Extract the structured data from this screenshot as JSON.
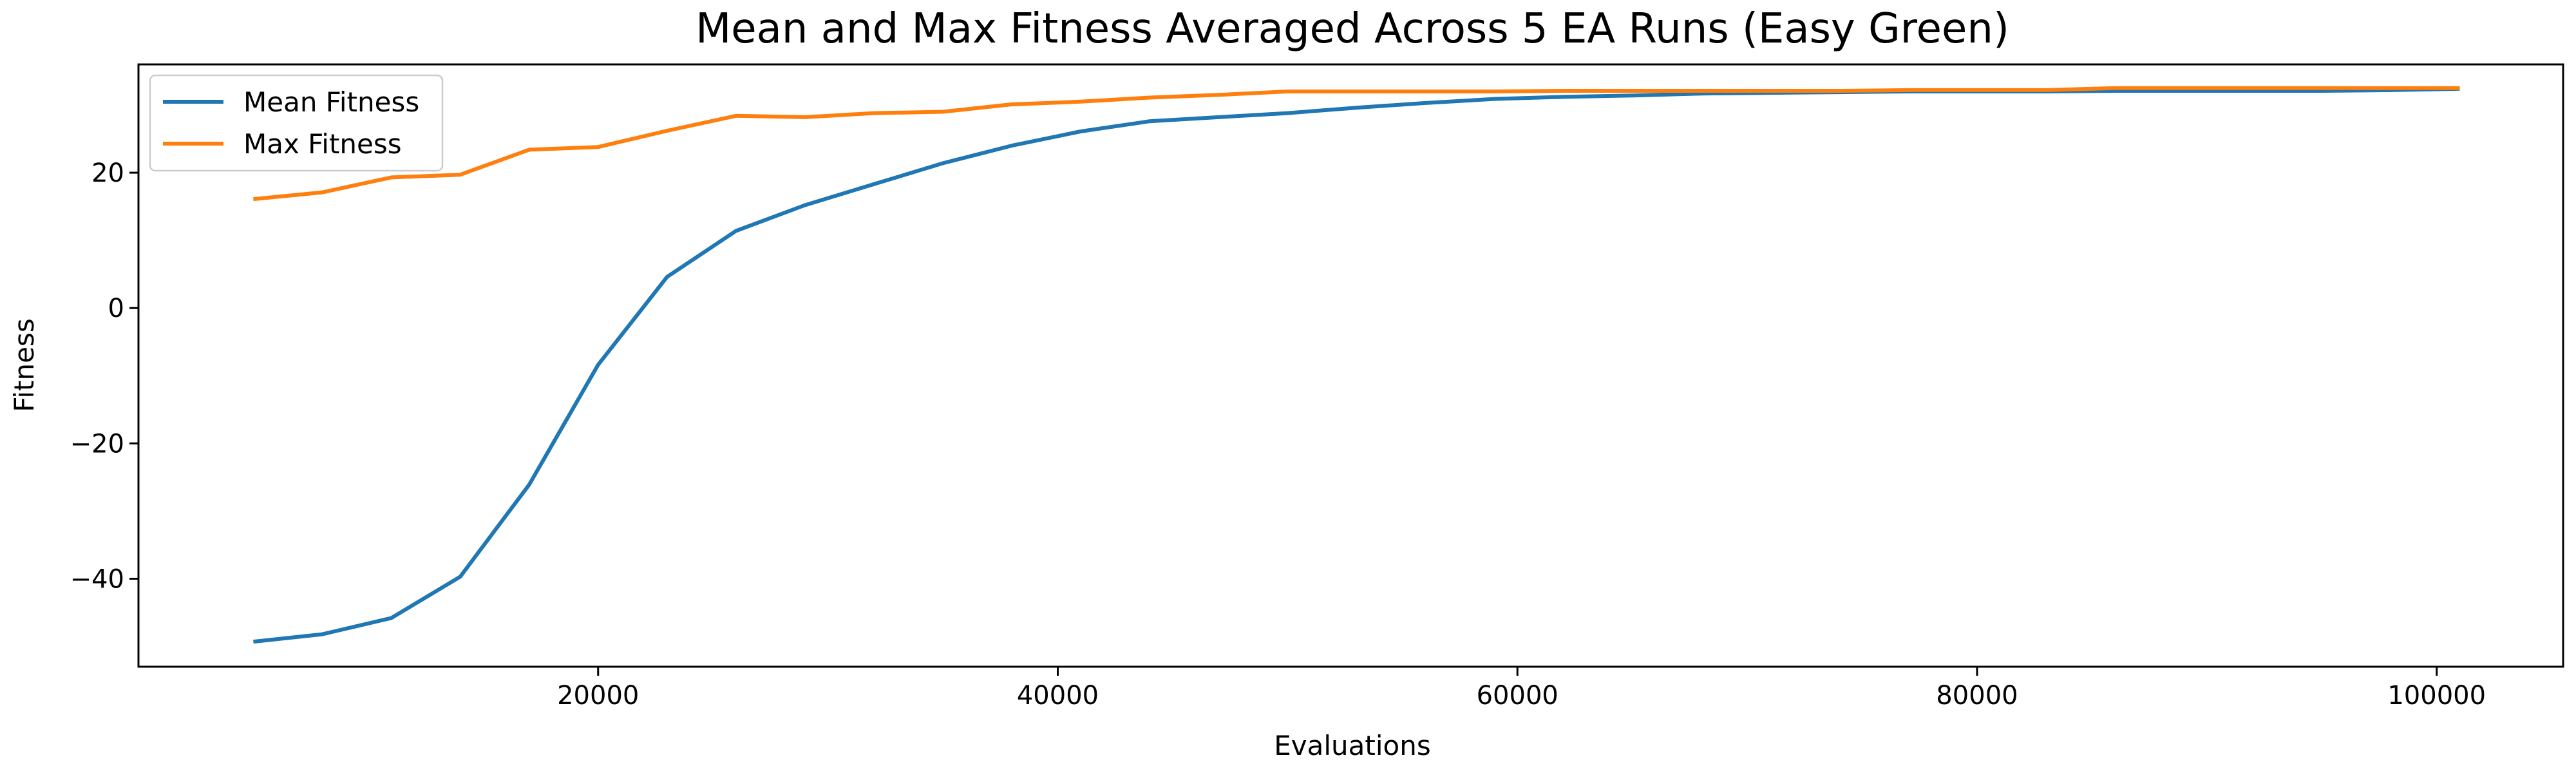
{
  "chart_data": {
    "type": "line",
    "title": "Mean and Max Fitness Averaged Across 5 EA Runs (Easy Green)",
    "xlabel": "Evaluations",
    "ylabel": "Fitness",
    "xlim": [
      0,
      105500
    ],
    "ylim": [
      -53,
      36
    ],
    "xticks": [
      20000,
      40000,
      60000,
      80000,
      100000
    ],
    "xtick_labels": [
      "20000",
      "40000",
      "60000",
      "80000",
      "100000"
    ],
    "yticks": [
      -40,
      -20,
      0,
      20
    ],
    "ytick_labels": [
      "−40",
      "−20",
      "0",
      "20"
    ],
    "grid": false,
    "legend_position": "top-left",
    "series": [
      {
        "name": "Mean Fitness",
        "color": "#1f77b4",
        "x": [
          5000,
          8000,
          11000,
          14000,
          17000,
          20000,
          23000,
          26000,
          29000,
          32000,
          35000,
          38000,
          41000,
          44000,
          47000,
          50000,
          53000,
          56000,
          59000,
          62000,
          65000,
          68000,
          71000,
          74000,
          77000,
          80000,
          83000,
          86000,
          89000,
          92000,
          95000,
          98000,
          101000
        ],
        "values": [
          -49.3,
          -48.2,
          -45.8,
          -39.7,
          -26.1,
          -8.4,
          4.6,
          11.4,
          15.2,
          18.3,
          21.4,
          24.0,
          26.1,
          27.6,
          28.2,
          28.8,
          29.6,
          30.3,
          30.9,
          31.2,
          31.4,
          31.7,
          31.8,
          31.9,
          32.0,
          32.0,
          32.0,
          32.1,
          32.1,
          32.1,
          32.1,
          32.2,
          32.4
        ]
      },
      {
        "name": "Max Fitness",
        "color": "#ff7f0e",
        "x": [
          5000,
          8000,
          11000,
          14000,
          17000,
          20000,
          23000,
          26000,
          29000,
          32000,
          35000,
          38000,
          41000,
          44000,
          47000,
          50000,
          53000,
          56000,
          59000,
          62000,
          65000,
          68000,
          71000,
          74000,
          77000,
          80000,
          83000,
          86000,
          89000,
          92000,
          95000,
          98000,
          101000
        ],
        "values": [
          16.1,
          17.1,
          19.3,
          19.7,
          23.4,
          23.8,
          26.2,
          28.4,
          28.2,
          28.8,
          29.0,
          30.1,
          30.5,
          31.1,
          31.5,
          32.0,
          32.0,
          32.0,
          32.0,
          32.1,
          32.1,
          32.1,
          32.1,
          32.1,
          32.2,
          32.2,
          32.2,
          32.5,
          32.5,
          32.5,
          32.5,
          32.5,
          32.5
        ]
      }
    ]
  }
}
